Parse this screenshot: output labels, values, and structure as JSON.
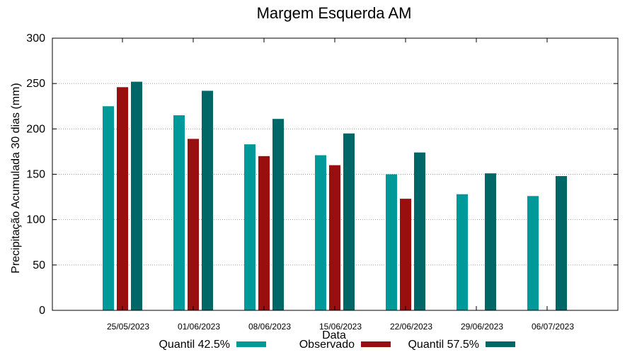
{
  "chart_data": {
    "type": "bar",
    "title": "Margem Esquerda AM",
    "xlabel": "Data",
    "ylabel": "Precipitação Acumulada 30 dias (mm)",
    "ylim": [
      0,
      300
    ],
    "yticks": [
      0,
      50,
      100,
      150,
      200,
      250,
      300
    ],
    "grid": true,
    "legend_position": "bottom",
    "categories": [
      "25/05/2023",
      "01/06/2023",
      "08/06/2023",
      "15/06/2023",
      "22/06/2023",
      "29/06/2023",
      "06/07/2023"
    ],
    "series": [
      {
        "name": "Quantil 42.5%",
        "color": "#009999",
        "values": [
          225,
          215,
          183,
          171,
          150,
          128,
          126
        ]
      },
      {
        "name": "Observado",
        "color": "#990f0f",
        "values": [
          246,
          189,
          170,
          160,
          123,
          null,
          null
        ]
      },
      {
        "name": "Quantil 57.5%",
        "color": "#006666",
        "values": [
          252,
          242,
          211,
          195,
          174,
          151,
          148
        ]
      }
    ]
  }
}
